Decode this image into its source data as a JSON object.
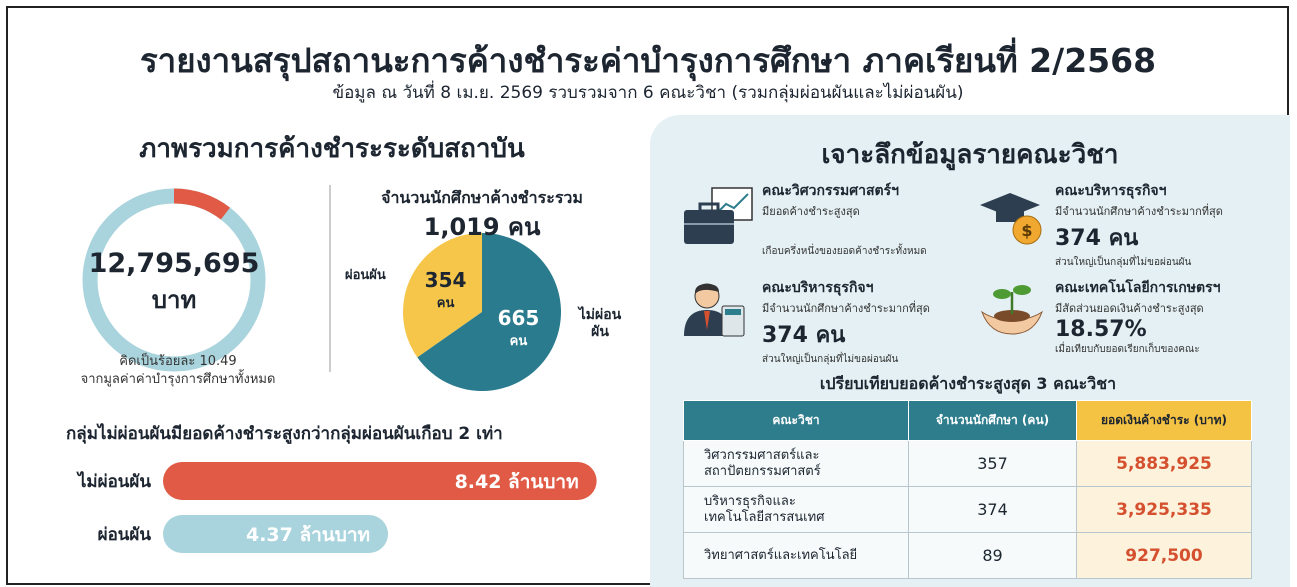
{
  "header": {
    "title": "รายงานสรุปสถานะการค้างชำระค่าบำรุงการศึกษา ภาคเรียนที่ 2/2568",
    "subtitle": "ข้อมูล ณ วันที่ 8 เม.ย. 2569 รวบรวมจาก 6 คณะวิชา (รวมกลุ่มผ่อนผันและไม่ผ่อนผัน)"
  },
  "overview": {
    "heading": "ภาพรวมการค้างชำระระดับสถาบัน"
  },
  "chart_data": [
    {
      "type": "donut",
      "center_label": "12,795,695",
      "center_unit": "บาท",
      "values": [
        10.49
      ],
      "value_labels": [
        "คิดเป็นร้อยละ 10.49"
      ],
      "caption": "จากมูลค่าค่าบำรุงการศึกษาทั้งหมด",
      "color": "#e05a45",
      "track_color": "#a9d4dd"
    },
    {
      "type": "pie",
      "title": "จำนวนนักศึกษาค้างชำระรวม",
      "subtitle": "1,019 คน",
      "categories": [
        "ผ่อนผัน",
        "ไม่ผ่อนผัน"
      ],
      "values": [
        354,
        665
      ],
      "value_unit": "คน",
      "colors": [
        "#f6c64a",
        "#2b7b8e"
      ]
    },
    {
      "type": "hbar",
      "title": "กลุ่มไม่ผ่อนผันมียอดค้างชำระสูงกว่ากลุ่มผ่อนผันเกือบ 2 เท่า",
      "categories": [
        "ไม่ผ่อนผัน",
        "ผ่อนผัน"
      ],
      "values": [
        8.42,
        4.37
      ],
      "value_labels": [
        "8.42 ล้านบาท",
        "4.37 ล้านบาท"
      ],
      "colors": [
        "#e05a45",
        "#a9d4dd"
      ]
    }
  ],
  "detail": {
    "heading": "เจาะลึกข้อมูลรายคณะวิชา",
    "cards": [
      {
        "title": "คณะวิศวกรรมศาสตร์ฯ",
        "desc": "มียอดค้างชำระสูงสุด",
        "note": "เกือบครึ่งหนึ่งของยอดค้างชำระทั้งหมด"
      },
      {
        "title": "คณะบริหารธุรกิจฯ",
        "desc": "มีจำนวนนักศึกษาค้างชำระมากที่สุด",
        "value": "374 คน",
        "note": "ส่วนใหญ่เป็นกลุ่มที่ไม่ขอผ่อนผัน"
      },
      {
        "title": "คณะบริหารธุรกิจฯ",
        "desc": "มีจำนวนนักศึกษาค้างชำระมากที่สุด",
        "value": "374 คน",
        "note": "ส่วนใหญ่เป็นกลุ่มที่ไม่ขอผ่อนผัน"
      },
      {
        "title": "คณะเทคโนโลยีการเกษตรฯ",
        "desc": "มีสัดส่วนยอดเงินค้างชำระสูงสุด",
        "value": "18.57%",
        "note": "เมื่อเทียบกับยอดเรียกเก็บของคณะ"
      }
    ]
  },
  "table": {
    "title": "เปรียบเทียบยอดค้างชำระสูงสุด 3 คณะวิชา",
    "header": [
      "คณะวิชา",
      "จำนวนนักศึกษา (คน)",
      "ยอดเงินค้างชำระ (บาท)"
    ],
    "rows": [
      [
        [
          "วิศวกรรมศาสตร์และ",
          "สถาปัตยกรรมศาสตร์"
        ],
        "357",
        "5,883,925"
      ],
      [
        [
          "บริหารธุรกิจและ",
          "เทคโนโลยีสารสนเทศ"
        ],
        "374",
        "3,925,335"
      ],
      [
        [
          "วิทยาศาสตร์และเทคโนโลยี"
        ],
        "89",
        "927,500"
      ]
    ]
  }
}
